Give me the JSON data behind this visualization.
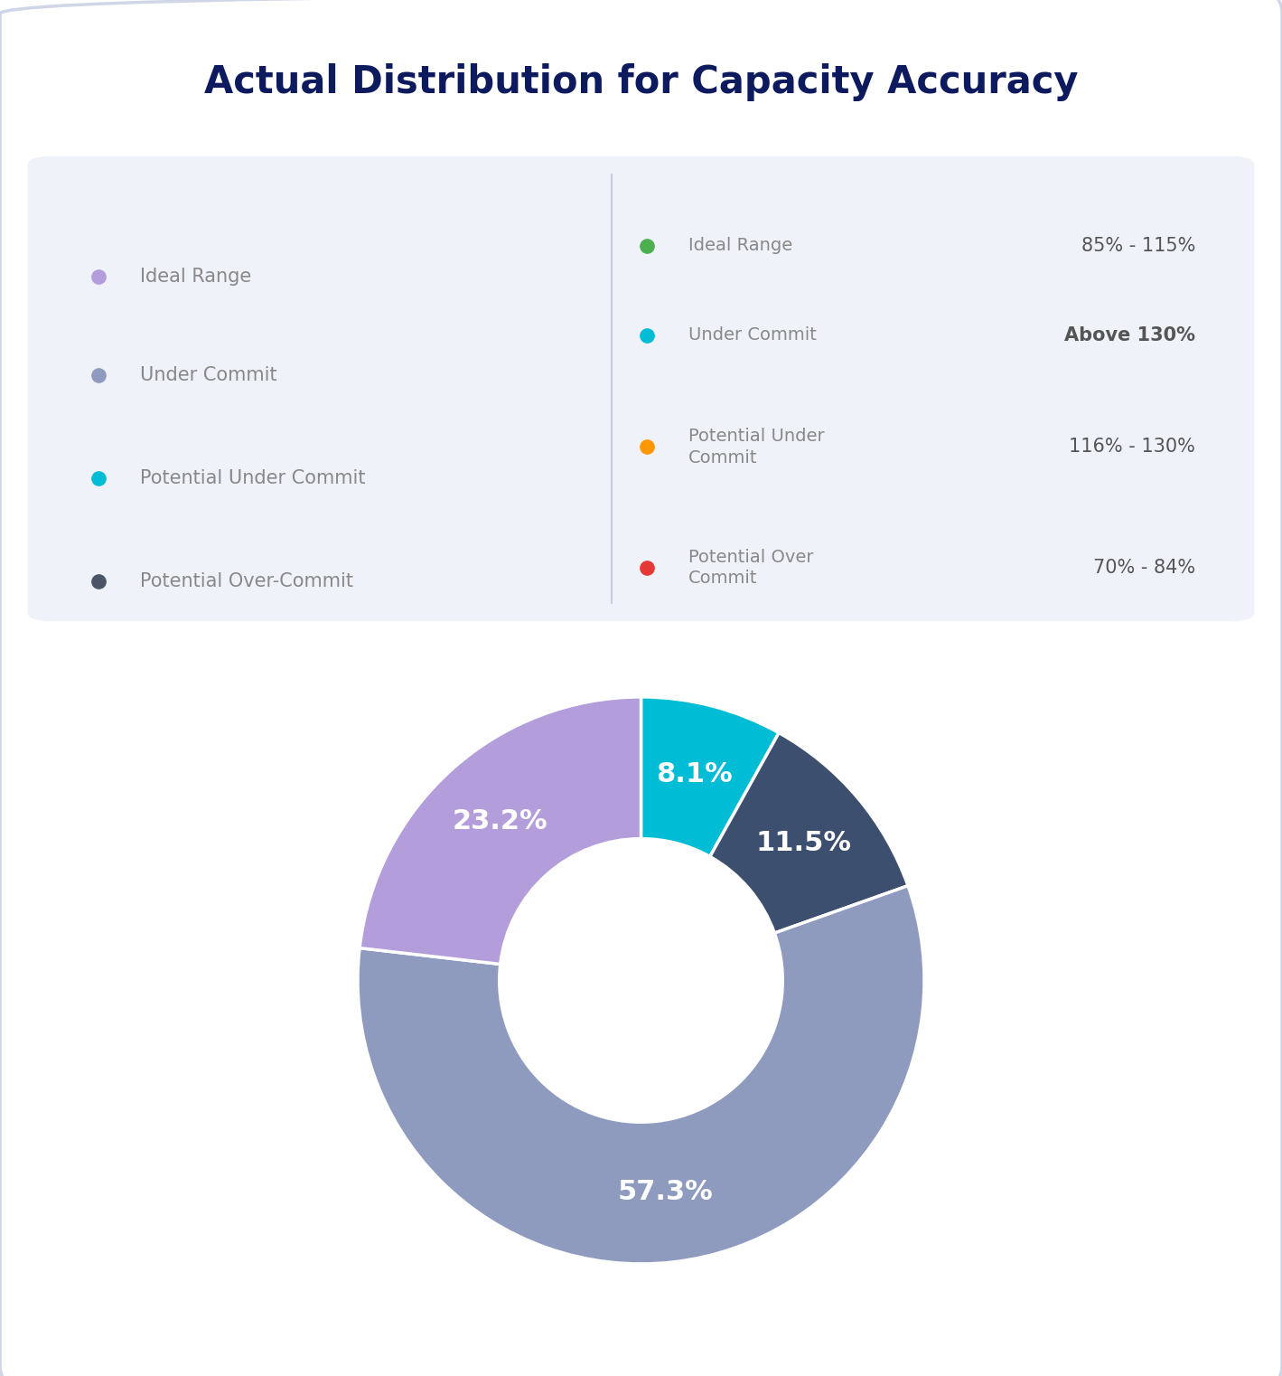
{
  "title": "Actual Distribution for Capacity Accuracy",
  "title_color": "#0d1b5e",
  "title_fontsize": 30,
  "background_color": "#ffffff",
  "legend_box_color": "#f0f2fa",
  "divider_color": "#c8cde0",
  "left_legend": [
    {
      "label": "Ideal Range",
      "color": "#b39ddb"
    },
    {
      "label": "Under Commit",
      "color": "#8e9bbf"
    },
    {
      "label": "Potential Under Commit",
      "color": "#00bcd4"
    },
    {
      "label": "Potential Over-Commit",
      "color": "#4a5568"
    }
  ],
  "right_legend": [
    {
      "label": "Ideal Range",
      "color": "#4caf50",
      "range": "85% - 115%",
      "bold": false
    },
    {
      "label": "Under Commit",
      "color": "#00bcd4",
      "range": "Above 130%",
      "bold": true
    },
    {
      "label": "Potential Under\nCommit",
      "color": "#ff9800",
      "range": "116% - 130%",
      "bold": false
    },
    {
      "label": "Potential Over\nCommit",
      "color": "#e53935",
      "range": "70% - 84%",
      "bold": false
    }
  ],
  "pie_values": [
    8.1,
    11.5,
    57.3,
    23.2
  ],
  "pie_colors": [
    "#00bcd4",
    "#3d4f6e",
    "#8e9bbf",
    "#b39ddb"
  ],
  "pie_labels": [
    "8.1%",
    "11.5%",
    "57.3%",
    "23.2%"
  ],
  "donut_text_color": "#ffffff",
  "donut_fontsize": 22,
  "wedge_linewidth": 2.5,
  "wedge_edgecolor": "#ffffff",
  "card_edge_color": "#d0d5e8",
  "legend_text_color": "#888888",
  "range_text_color": "#555555"
}
